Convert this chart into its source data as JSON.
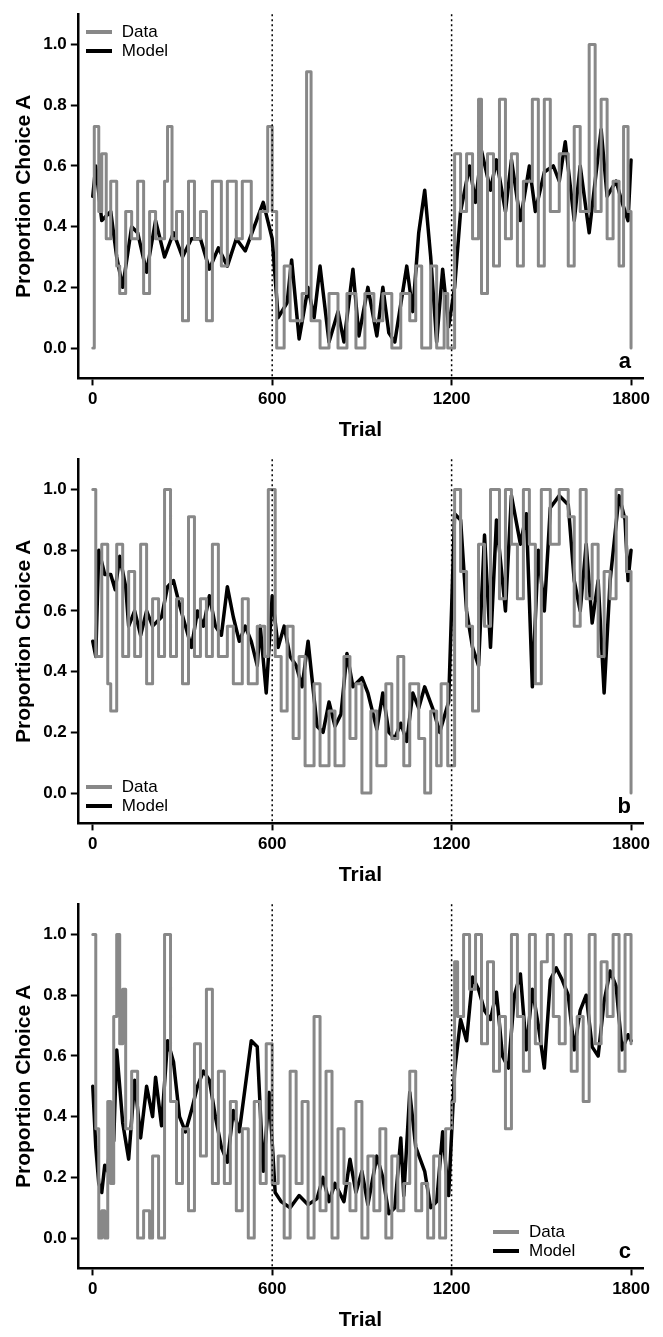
{
  "chart_data": [
    {
      "type": "line",
      "xlabel": "Trial",
      "ylabel": "Proportion Choice A",
      "xlim": [
        -50,
        1840
      ],
      "ylim": [
        -0.1,
        1.1
      ],
      "xticks": [
        0,
        600,
        1200,
        1800
      ],
      "yticks": [
        {
          "value": 0,
          "label": "0.0"
        },
        {
          "value": 0.2,
          "label": "0.2"
        },
        {
          "value": 0.4,
          "label": "0.4"
        },
        {
          "value": 0.6,
          "label": "0.6"
        },
        {
          "value": 0.8,
          "label": "0.8"
        },
        {
          "value": 1,
          "label": "1.0"
        }
      ],
      "legend": "top left",
      "line_style": "solid",
      "annotations": [
        "a"
      ],
      "ref_lines": [
        {
          "axis": "x",
          "value": 600,
          "line_style": "dotted",
          "color": "#000000"
        },
        {
          "axis": "x",
          "value": 1200,
          "line_style": "dotted",
          "color": "#000000"
        }
      ],
      "series": [
        {
          "name": "Data",
          "color": "#888888",
          "type": "step",
          "x": [
            0,
            5,
            20,
            30,
            45,
            60,
            80,
            90,
            110,
            130,
            150,
            170,
            190,
            210,
            240,
            250,
            265,
            280,
            300,
            320,
            340,
            360,
            380,
            400,
            430,
            450,
            480,
            500,
            530,
            560,
            585,
            600,
            615,
            640,
            660,
            700,
            715,
            730,
            760,
            790,
            820,
            850,
            880,
            910,
            940,
            970,
            1000,
            1030,
            1060,
            1080,
            1100,
            1130,
            1150,
            1175,
            1187,
            1210,
            1230,
            1250,
            1270,
            1290,
            1300,
            1320,
            1340,
            1360,
            1380,
            1400,
            1420,
            1440,
            1470,
            1490,
            1510,
            1530,
            1560,
            1590,
            1610,
            1630,
            1660,
            1680,
            1700,
            1720,
            1740,
            1760,
            1775,
            1790,
            1800
          ],
          "values": [
            0,
            0.73,
            0.45,
            0.64,
            0.36,
            0.55,
            0.27,
            0.18,
            0.45,
            0.36,
            0.55,
            0.18,
            0.45,
            0.36,
            0.55,
            0.73,
            0.36,
            0.45,
            0.09,
            0.55,
            0.36,
            0.45,
            0.09,
            0.55,
            0.27,
            0.55,
            0.36,
            0.55,
            0.36,
            0.45,
            0.73,
            0.45,
            0,
            0.27,
            0.09,
            0.18,
            0.91,
            0.09,
            0,
            0.18,
            0,
            0.18,
            0,
            0.18,
            0.09,
            0.18,
            0,
            0.18,
            0.09,
            0.27,
            0,
            0.27,
            0,
            0.18,
            0,
            0.64,
            0.45,
            0.64,
            0.36,
            0.82,
            0.18,
            0.64,
            0.27,
            0.82,
            0.36,
            0.64,
            0.27,
            0.55,
            0.82,
            0.27,
            0.82,
            0.45,
            0.64,
            0.27,
            0.73,
            0.45,
            1,
            0.45,
            0.82,
            0.36,
            0.55,
            0.27,
            0.73,
            0.45,
            0
          ]
        },
        {
          "name": "Model",
          "color": "#000000",
          "type": "line",
          "x": [
            0,
            10,
            30,
            60,
            80,
            100,
            130,
            150,
            180,
            210,
            240,
            270,
            300,
            330,
            360,
            390,
            420,
            450,
            480,
            510,
            540,
            570,
            600,
            620,
            650,
            665,
            690,
            720,
            740,
            760,
            790,
            820,
            840,
            870,
            890,
            920,
            950,
            970,
            990,
            1010,
            1050,
            1070,
            1090,
            1110,
            1130,
            1150,
            1170,
            1190,
            1210,
            1230,
            1260,
            1280,
            1300,
            1330,
            1350,
            1380,
            1400,
            1430,
            1460,
            1480,
            1510,
            1540,
            1560,
            1580,
            1610,
            1630,
            1660,
            1680,
            1700,
            1720,
            1750,
            1770,
            1790,
            1800
          ],
          "values": [
            0.5,
            0.6,
            0.42,
            0.45,
            0.3,
            0.2,
            0.4,
            0.38,
            0.25,
            0.42,
            0.3,
            0.38,
            0.3,
            0.36,
            0.36,
            0.26,
            0.33,
            0.27,
            0.36,
            0.32,
            0.4,
            0.48,
            0.36,
            0.1,
            0.15,
            0.29,
            0.03,
            0.2,
            0.1,
            0.27,
            0.02,
            0.12,
            0.02,
            0.26,
            0.04,
            0.2,
            0.04,
            0.2,
            0.05,
            0.02,
            0.27,
            0.12,
            0.38,
            0.52,
            0.3,
            0.02,
            0.26,
            0.07,
            0.2,
            0.45,
            0.6,
            0.48,
            0.65,
            0.52,
            0.62,
            0.45,
            0.62,
            0.42,
            0.6,
            0.45,
            0.58,
            0.6,
            0.55,
            0.68,
            0.42,
            0.6,
            0.38,
            0.55,
            0.72,
            0.5,
            0.55,
            0.48,
            0.42,
            0.62
          ]
        }
      ]
    },
    {
      "type": "line",
      "xlabel": "Trial",
      "ylabel": "Proportion Choice A",
      "xlim": [
        -50,
        1840
      ],
      "ylim": [
        -0.1,
        1.1
      ],
      "xticks": [
        0,
        600,
        1200,
        1800
      ],
      "yticks": [
        {
          "value": 0,
          "label": "0.0"
        },
        {
          "value": 0.2,
          "label": "0.2"
        },
        {
          "value": 0.4,
          "label": "0.4"
        },
        {
          "value": 0.6,
          "label": "0.6"
        },
        {
          "value": 0.8,
          "label": "0.8"
        },
        {
          "value": 1,
          "label": "1.0"
        }
      ],
      "legend": "bottom left",
      "line_style": "solid",
      "annotations": [
        "b"
      ],
      "ref_lines": [
        {
          "axis": "x",
          "value": 600,
          "line_style": "dotted",
          "color": "#000000"
        },
        {
          "axis": "x",
          "value": 1200,
          "line_style": "dotted",
          "color": "#000000"
        }
      ],
      "series": [
        {
          "name": "Data",
          "color": "#888888",
          "type": "step",
          "x": [
            0,
            10,
            30,
            50,
            60,
            80,
            100,
            120,
            140,
            160,
            180,
            200,
            220,
            240,
            260,
            280,
            300,
            320,
            340,
            360,
            380,
            400,
            420,
            450,
            470,
            500,
            520,
            550,
            575,
            587,
            610,
            630,
            650,
            670,
            690,
            710,
            740,
            760,
            790,
            810,
            840,
            860,
            880,
            900,
            930,
            950,
            980,
            1000,
            1020,
            1040,
            1060,
            1090,
            1110,
            1130,
            1150,
            1165,
            1187,
            1210,
            1230,
            1250,
            1270,
            1290,
            1310,
            1330,
            1360,
            1380,
            1400,
            1420,
            1440,
            1460,
            1480,
            1500,
            1530,
            1560,
            1590,
            1610,
            1630,
            1650,
            1670,
            1690,
            1710,
            1730,
            1750,
            1770,
            1785,
            1800
          ],
          "values": [
            1,
            0.45,
            0.82,
            0.36,
            0.27,
            0.82,
            0.45,
            0.73,
            0.45,
            0.82,
            0.36,
            0.64,
            0.45,
            1,
            0.45,
            0.64,
            0.36,
            0.91,
            0.45,
            0.64,
            0.45,
            0.82,
            0.45,
            0.55,
            0.36,
            0.64,
            0.36,
            0.55,
            0.45,
            1,
            0.45,
            0.27,
            0.55,
            0.18,
            0.45,
            0.09,
            0.36,
            0.09,
            0.27,
            0.09,
            0.45,
            0.18,
            0.36,
            0,
            0.27,
            0.09,
            0.36,
            0.18,
            0.45,
            0.09,
            0.36,
            0.18,
            0,
            0.27,
            0.09,
            0.36,
            0.09,
            1,
            0.73,
            0.55,
            0.27,
            0.82,
            0.55,
            1,
            0.64,
            1,
            0.82,
            0.64,
            1,
            0.82,
            0.36,
            1,
            0.82,
            1,
            0.91,
            0.55,
            1,
            0.64,
            0.82,
            0.45,
            0.73,
            0.64,
            1,
            0.91,
            0.73,
            0
          ]
        },
        {
          "name": "Model",
          "color": "#000000",
          "type": "line",
          "x": [
            0,
            10,
            20,
            40,
            60,
            75,
            90,
            110,
            120,
            140,
            160,
            180,
            200,
            230,
            250,
            270,
            290,
            310,
            330,
            350,
            370,
            390,
            410,
            430,
            450,
            470,
            490,
            510,
            530,
            550,
            560,
            580,
            600,
            620,
            640,
            660,
            680,
            700,
            720,
            750,
            770,
            790,
            810,
            830,
            850,
            870,
            900,
            920,
            950,
            970,
            990,
            1010,
            1030,
            1050,
            1070,
            1090,
            1110,
            1140,
            1160,
            1190,
            1210,
            1230,
            1250,
            1270,
            1290,
            1310,
            1330,
            1350,
            1380,
            1400,
            1430,
            1450,
            1470,
            1490,
            1510,
            1530,
            1560,
            1590,
            1610,
            1630,
            1650,
            1670,
            1690,
            1710,
            1730,
            1760,
            1780,
            1790,
            1800
          ],
          "values": [
            0.5,
            0.45,
            0.8,
            0.72,
            0.72,
            0.67,
            0.78,
            0.68,
            0.55,
            0.6,
            0.52,
            0.6,
            0.55,
            0.58,
            0.68,
            0.7,
            0.62,
            0.55,
            0.48,
            0.6,
            0.55,
            0.65,
            0.55,
            0.52,
            0.68,
            0.58,
            0.5,
            0.55,
            0.5,
            0.42,
            0.55,
            0.33,
            0.65,
            0.48,
            0.55,
            0.45,
            0.42,
            0.35,
            0.5,
            0.22,
            0.2,
            0.3,
            0.22,
            0.26,
            0.46,
            0.35,
            0.38,
            0.33,
            0.21,
            0.33,
            0.2,
            0.18,
            0.23,
            0.17,
            0.33,
            0.28,
            0.35,
            0.27,
            0.2,
            0.3,
            0.92,
            0.9,
            0.6,
            0.48,
            0.42,
            0.85,
            0.48,
            0.9,
            0.6,
            0.98,
            0.82,
            0.92,
            0.35,
            0.8,
            0.6,
            0.94,
            0.98,
            0.95,
            0.7,
            0.6,
            0.82,
            0.56,
            0.7,
            0.33,
            0.7,
            0.98,
            0.9,
            0.7,
            0.8
          ]
        }
      ]
    },
    {
      "type": "line",
      "xlabel": "Trial",
      "ylabel": "Proportion Choice A",
      "xlim": [
        -50,
        1840
      ],
      "ylim": [
        -0.1,
        1.1
      ],
      "xticks": [
        0,
        600,
        1200,
        1800
      ],
      "yticks": [
        {
          "value": 0,
          "label": "0.0"
        },
        {
          "value": 0.2,
          "label": "0.2"
        },
        {
          "value": 0.4,
          "label": "0.4"
        },
        {
          "value": 0.6,
          "label": "0.6"
        },
        {
          "value": 0.8,
          "label": "0.8"
        },
        {
          "value": 1,
          "label": "1.0"
        }
      ],
      "legend": "bottom right",
      "line_style": "solid",
      "annotations": [
        "c"
      ],
      "ref_lines": [
        {
          "axis": "x",
          "value": 600,
          "line_style": "dotted",
          "color": "#000000"
        },
        {
          "axis": "x",
          "value": 1200,
          "line_style": "dotted",
          "color": "#000000"
        }
      ],
      "series": [
        {
          "name": "Data",
          "color": "#888888",
          "type": "step",
          "x": [
            0,
            10,
            20,
            30,
            40,
            50,
            60,
            70,
            80,
            90,
            100,
            110,
            130,
            150,
            170,
            190,
            200,
            220,
            240,
            260,
            280,
            300,
            320,
            340,
            360,
            380,
            400,
            420,
            440,
            460,
            480,
            500,
            520,
            540,
            560,
            580,
            600,
            620,
            640,
            660,
            680,
            700,
            720,
            740,
            760,
            780,
            800,
            820,
            840,
            860,
            880,
            900,
            920,
            940,
            960,
            980,
            1000,
            1020,
            1040,
            1060,
            1080,
            1100,
            1120,
            1140,
            1160,
            1180,
            1200,
            1210,
            1220,
            1240,
            1260,
            1280,
            1300,
            1320,
            1340,
            1360,
            1380,
            1400,
            1420,
            1440,
            1460,
            1480,
            1500,
            1520,
            1540,
            1560,
            1580,
            1600,
            1620,
            1640,
            1660,
            1680,
            1700,
            1720,
            1740,
            1760,
            1780,
            1800
          ],
          "values": [
            1,
            0.36,
            0,
            0.09,
            0,
            0.45,
            0.18,
            0.73,
            1,
            0.64,
            0.82,
            0.36,
            0.55,
            0,
            0.09,
            0,
            0.27,
            0,
            1,
            0.45,
            0.18,
            0.36,
            0.09,
            0.64,
            0.27,
            0.82,
            0.18,
            0.55,
            0.18,
            0.45,
            0.09,
            0.36,
            0,
            0.45,
            0.18,
            0.64,
            0.18,
            0.27,
            0,
            0.55,
            0.18,
            0.45,
            0,
            0.73,
            0.09,
            0.55,
            0,
            0.36,
            0.18,
            0.09,
            0.45,
            0,
            0.27,
            0.09,
            0.36,
            0,
            0.27,
            0.09,
            0.18,
            0.55,
            0.09,
            0.18,
            0,
            0.27,
            0,
            0.36,
            0.45,
            0.91,
            0.73,
            1,
            0.82,
            1,
            0.64,
            0.91,
            0.55,
            0.73,
            0.36,
            1,
            0.73,
            0.55,
            1,
            0.64,
            0.91,
            1,
            0.73,
            0.64,
            1,
            0.55,
            0.73,
            0.45,
            1,
            0.64,
            0.91,
            0.73,
            1,
            0.55,
            1,
            0.64
          ]
        },
        {
          "name": "Model",
          "color": "#000000",
          "type": "line",
          "x": [
            0,
            10,
            20,
            30,
            40,
            50,
            60,
            70,
            80,
            90,
            100,
            120,
            140,
            160,
            180,
            200,
            210,
            230,
            250,
            270,
            290,
            310,
            330,
            350,
            370,
            390,
            410,
            430,
            450,
            470,
            490,
            510,
            530,
            550,
            570,
            590,
            610,
            630,
            660,
            690,
            720,
            750,
            770,
            790,
            810,
            840,
            860,
            880,
            900,
            920,
            950,
            970,
            990,
            1010,
            1030,
            1040,
            1060,
            1080,
            1110,
            1130,
            1150,
            1170,
            1190,
            1210,
            1230,
            1250,
            1270,
            1290,
            1310,
            1330,
            1350,
            1370,
            1390,
            1410,
            1430,
            1450,
            1470,
            1490,
            1510,
            1530,
            1550,
            1570,
            1590,
            1610,
            1630,
            1650,
            1670,
            1690,
            1710,
            1730,
            1750,
            1770,
            1790,
            1800
          ],
          "values": [
            0.5,
            0.3,
            0.18,
            0.15,
            0.24,
            0.22,
            0.35,
            0.32,
            0.62,
            0.5,
            0.38,
            0.26,
            0.52,
            0.33,
            0.5,
            0.4,
            0.53,
            0.37,
            0.65,
            0.58,
            0.4,
            0.35,
            0.42,
            0.5,
            0.55,
            0.52,
            0.4,
            0.3,
            0.25,
            0.42,
            0.35,
            0.5,
            0.65,
            0.63,
            0.22,
            0.48,
            0.15,
            0.12,
            0.1,
            0.14,
            0.11,
            0.13,
            0.2,
            0.12,
            0.18,
            0.12,
            0.26,
            0.15,
            0.22,
            0.11,
            0.27,
            0.2,
            0.08,
            0.1,
            0.33,
            0.14,
            0.48,
            0.3,
            0.22,
            0.1,
            0.12,
            0.35,
            0.14,
            0.55,
            0.72,
            0.65,
            0.86,
            0.82,
            0.75,
            0.72,
            0.81,
            0.6,
            0.56,
            0.8,
            0.87,
            0.62,
            0.82,
            0.7,
            0.56,
            0.85,
            0.89,
            0.85,
            0.8,
            0.62,
            0.75,
            0.8,
            0.63,
            0.6,
            0.78,
            0.88,
            0.83,
            0.62,
            0.67,
            0.65
          ]
        }
      ]
    }
  ]
}
